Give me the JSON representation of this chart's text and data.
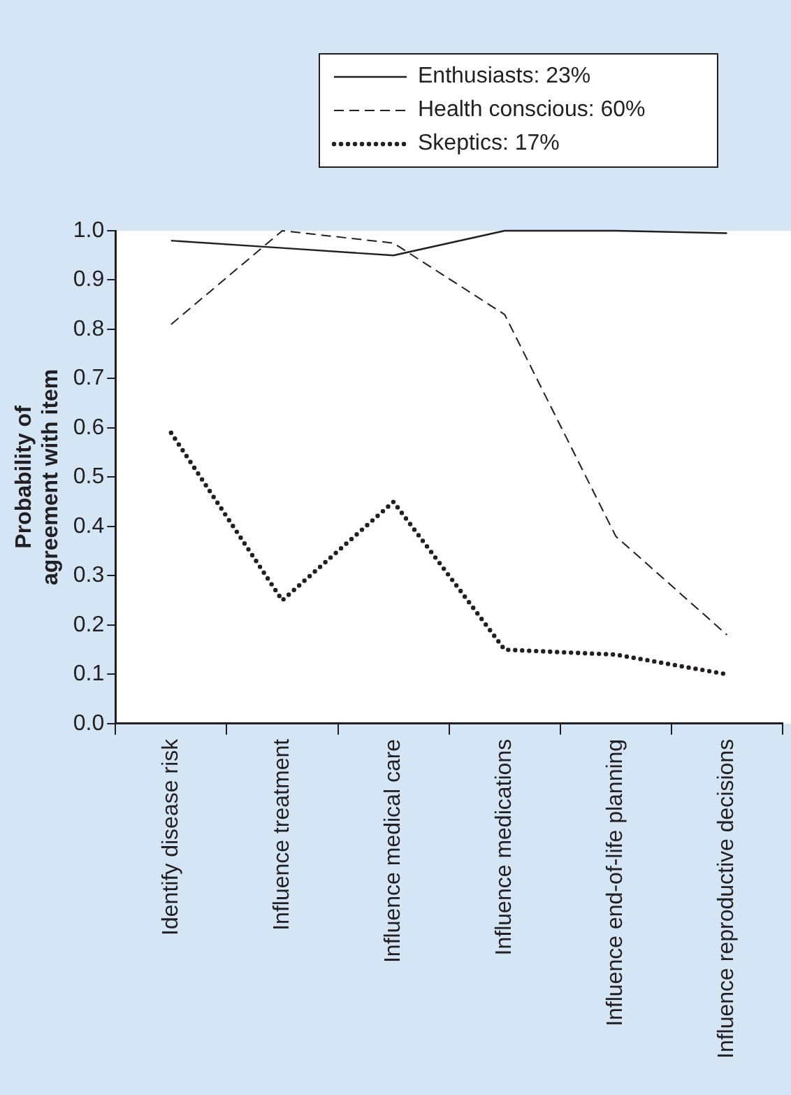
{
  "chart_data": {
    "type": "line",
    "ylabel": "Probability of agreement with item",
    "categories": [
      "Identify disease risk",
      "Influence treatment",
      "Influence medical care",
      "Influence medications",
      "Influence end-of-life planning",
      "Influence reproductive decisions"
    ],
    "series": [
      {
        "name": "Enthusiasts: 23%",
        "color": "#231f20",
        "line_style": "solid",
        "values": [
          0.98,
          0.965,
          0.95,
          1.0,
          1.0,
          0.995
        ]
      },
      {
        "name": "Health conscious: 60%",
        "color": "#231f20",
        "line_style": "dashed",
        "values": [
          0.81,
          1.0,
          0.975,
          0.83,
          0.38,
          0.18
        ]
      },
      {
        "name": "Skeptics: 17%",
        "color": "#231f20",
        "line_style": "dotted",
        "values": [
          0.59,
          0.25,
          0.45,
          0.15,
          0.14,
          0.1
        ]
      }
    ],
    "ylim": [
      0,
      1
    ],
    "yticks": [
      {
        "value": 0,
        "label": "0.0"
      },
      {
        "value": 0.1,
        "label": "0.1"
      },
      {
        "value": 0.2,
        "label": "0.2"
      },
      {
        "value": 0.3,
        "label": "0.3"
      },
      {
        "value": 0.4,
        "label": "0.4"
      },
      {
        "value": 0.5,
        "label": "0.5"
      },
      {
        "value": 0.6,
        "label": "0.6"
      },
      {
        "value": 0.7,
        "label": "0.7"
      },
      {
        "value": 0.8,
        "label": "0.8"
      },
      {
        "value": 0.9,
        "label": "0.9"
      },
      {
        "value": 1,
        "label": "1.0"
      }
    ],
    "grid": false,
    "legend": "top",
    "marker": "none"
  }
}
